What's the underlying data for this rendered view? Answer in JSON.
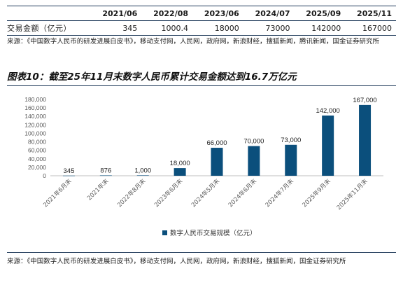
{
  "table": {
    "header": [
      "",
      "2021/06",
      "2022/08",
      "2023/06",
      "2024/07",
      "2025/09",
      "2025/11"
    ],
    "row": [
      "交易金额（亿元）",
      "345",
      "1000.4",
      "18000",
      "73000",
      "142000",
      "167000"
    ]
  },
  "source_top": "来源：《中国数字人民币的研发进展白皮书》，移动支付网，人民网，政府网，新浪财经，搜狐新闻，腾讯新闻，国金证券研究所",
  "caption": "图表10：截至25年11月末数字人民币累计交易金额达到16.7万亿元",
  "source_bottom": "来源：《中国数字人民币的研发进展白皮书》，移动支付网，人民网，政府网，新浪财经，搜狐新闻，国金证券研究所",
  "colors": {
    "bar": "#0b4f7c",
    "rule": "#1f3a5a",
    "grid": "#d9d9d9",
    "text": "#595959"
  },
  "chart_data": {
    "type": "bar",
    "categories": [
      "2021年6月末",
      "2021年末",
      "2022年8月末",
      "2023年6月末",
      "2024年5月末",
      "2024年6月末",
      "2024年7月末",
      "2025年9月末",
      "2025年11月末"
    ],
    "series": [
      {
        "name": "数字人民币交易规模（亿元）",
        "values": [
          345,
          876,
          1000,
          18000,
          66000,
          70000,
          73000,
          142000,
          167000
        ]
      }
    ],
    "data_labels": [
      "345",
      "876",
      "1,000",
      "18,000",
      "66,000",
      "70,000",
      "73,000",
      "142,000",
      "167,000"
    ],
    "yticks": [
      "0",
      "20,000",
      "40,000",
      "60,000",
      "80,000",
      "100,000",
      "120,000",
      "140,000",
      "160,000",
      "180,000"
    ],
    "ylim": [
      0,
      180000
    ],
    "grid": false,
    "legend": "bottom"
  }
}
